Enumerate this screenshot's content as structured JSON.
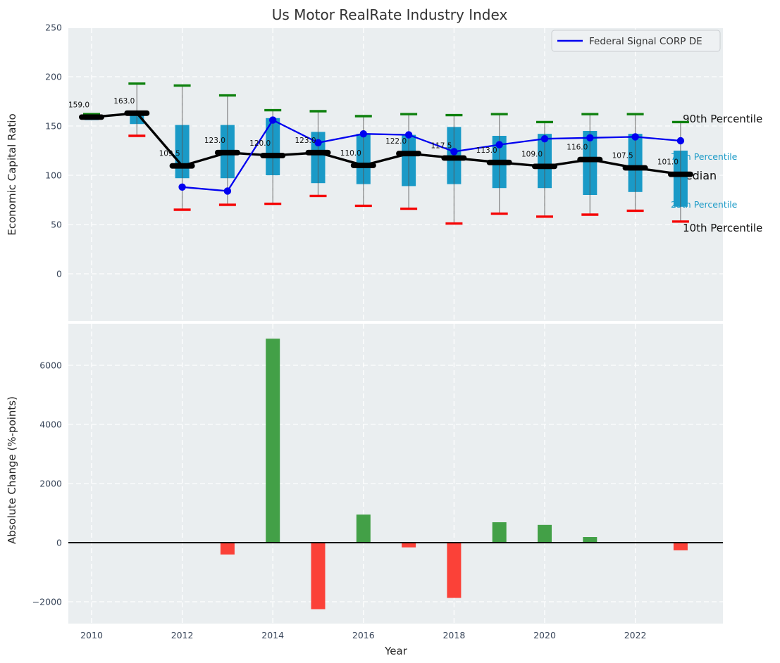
{
  "title": "Us Motor RealRate Industry Index",
  "legend": {
    "label": "Federal Signal CORP DE",
    "position": "upper right"
  },
  "colors": {
    "axes_bg": "#eaeef0",
    "grid": "#ffffff",
    "box": "#1a9ac7",
    "whisker": "#555555",
    "cap_high": "#0e810e",
    "cap_low": "#f50505",
    "median": "#000000",
    "company_line": "#0000f0",
    "bar_positive": "#43a047",
    "bar_negative": "#fb4138",
    "tick_label": "#39465a",
    "axis_label": "#262626",
    "title": "#333333",
    "annotation_dark": "#111111",
    "annotation_cyan": "#1a9ac7"
  },
  "chart_data": [
    {
      "type": "boxwhisker_line",
      "x": [
        2010,
        2011,
        2012,
        2013,
        2014,
        2015,
        2016,
        2017,
        2018,
        2019,
        2020,
        2021,
        2022,
        2023
      ],
      "ylabel": "Economic Capital Ratio",
      "ylim": [
        -45,
        250
      ],
      "yticks": [
        0,
        50,
        100,
        150,
        200,
        250
      ],
      "grid": true,
      "series": [
        {
          "name": "Median",
          "type": "line_with_dash_markers",
          "color": "#000000",
          "values": [
            159.0,
            163.0,
            109.5,
            123.0,
            120.0,
            123.0,
            110.0,
            122.0,
            117.5,
            113.0,
            109.0,
            116.0,
            107.5,
            101.0
          ]
        },
        {
          "name": "Federal Signal CORP DE",
          "type": "line_with_dot_markers",
          "color": "#0000f0",
          "values": [
            null,
            null,
            88,
            84,
            156,
            133,
            142,
            141,
            124,
            131,
            137,
            138,
            139,
            135
          ]
        }
      ],
      "box_q1": [
        156,
        152,
        97,
        97,
        100,
        92,
        91,
        89,
        91,
        87,
        87,
        80,
        83,
        68
      ],
      "box_q3": [
        161,
        163,
        151,
        151,
        158,
        144,
        142,
        141,
        149,
        140,
        142,
        145,
        142,
        125
      ],
      "whisker_p10": [
        null,
        140,
        65,
        70,
        71,
        79,
        69,
        66,
        51,
        61,
        58,
        60,
        64,
        53
      ],
      "whisker_p90": [
        162,
        193,
        191,
        181,
        166,
        165,
        160,
        162,
        161,
        162,
        154,
        162,
        162,
        154
      ],
      "median_point_labels": [
        "159.0",
        "163.0",
        "109.5",
        "123.0",
        "120.0",
        "123.0",
        "110.0",
        "122.0",
        "117.5",
        "113.0",
        "109.0",
        "116.0",
        "107.5",
        "101.0"
      ],
      "right_annotations": [
        "90th Percentile",
        "75th Percentile",
        "Median",
        "25th Percentile",
        "10th Percentile"
      ],
      "legend_entries": [
        "Federal Signal CORP DE"
      ]
    },
    {
      "type": "bar",
      "categories": [
        2010,
        2011,
        2012,
        2013,
        2014,
        2015,
        2016,
        2017,
        2018,
        2019,
        2020,
        2021,
        2022,
        2023
      ],
      "values": [
        0,
        0,
        0,
        -400,
        6900,
        -2250,
        950,
        -160,
        -1870,
        690,
        600,
        190,
        0,
        -260
      ],
      "xlabel": "Year",
      "ylabel": "Absolute Change (%-points)",
      "yticks": [
        -2000,
        0,
        2000,
        4000,
        6000
      ],
      "xticks": [
        2010,
        2012,
        2014,
        2016,
        2018,
        2020,
        2022
      ],
      "grid": true
    }
  ]
}
